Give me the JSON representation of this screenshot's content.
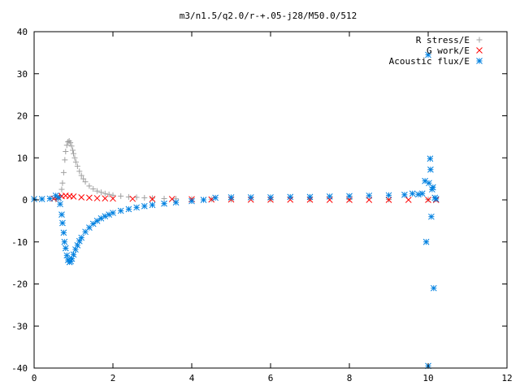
{
  "chart_data": {
    "type": "scatter",
    "title": "m3/n1.5/q2.0/r-+.05-j28/M50.0/512",
    "xlabel": "",
    "ylabel": "",
    "xlim": [
      0,
      12
    ],
    "ylim": [
      -40,
      40
    ],
    "x_ticks": [
      0,
      2,
      4,
      6,
      8,
      10,
      12
    ],
    "y_ticks": [
      -40,
      -30,
      -20,
      -10,
      0,
      10,
      20,
      30,
      40
    ],
    "x_tick_labels": [
      "0",
      "2",
      "4",
      "6",
      "8",
      "10",
      "12"
    ],
    "y_tick_labels": [
      "-40",
      "-30",
      "-20",
      "-10",
      "0",
      "10",
      "20",
      "30",
      "40"
    ],
    "grid": false,
    "legend_position": "top-right",
    "series": [
      {
        "name": "R stress/E",
        "marker": "plus",
        "color": "#a0a0a0",
        "points": [
          [
            0.55,
            0.1
          ],
          [
            0.6,
            0.3
          ],
          [
            0.65,
            1.0
          ],
          [
            0.7,
            2.5
          ],
          [
            0.72,
            4.0
          ],
          [
            0.75,
            6.5
          ],
          [
            0.78,
            9.5
          ],
          [
            0.8,
            11.5
          ],
          [
            0.83,
            13.0
          ],
          [
            0.86,
            13.8
          ],
          [
            0.89,
            14.0
          ],
          [
            0.92,
            13.6
          ],
          [
            0.95,
            12.8
          ],
          [
            0.98,
            11.8
          ],
          [
            1.0,
            11.0
          ],
          [
            1.03,
            10.0
          ],
          [
            1.06,
            9.0
          ],
          [
            1.1,
            8.0
          ],
          [
            1.15,
            6.8
          ],
          [
            1.2,
            5.8
          ],
          [
            1.25,
            5.0
          ],
          [
            1.3,
            4.3
          ],
          [
            1.4,
            3.3
          ],
          [
            1.5,
            2.6
          ],
          [
            1.6,
            2.1
          ],
          [
            1.7,
            1.8
          ],
          [
            1.8,
            1.5
          ],
          [
            1.9,
            1.3
          ],
          [
            2.0,
            1.1
          ],
          [
            2.2,
            0.9
          ],
          [
            2.4,
            0.7
          ],
          [
            2.6,
            0.6
          ],
          [
            2.8,
            0.5
          ],
          [
            3.0,
            0.4
          ],
          [
            3.3,
            0.3
          ],
          [
            3.6,
            0.25
          ],
          [
            4.0,
            0.2
          ],
          [
            4.5,
            0.15
          ],
          [
            5.0,
            0.1
          ],
          [
            6.0,
            0.1
          ],
          [
            7.0,
            0.1
          ],
          [
            8.0,
            0.1
          ],
          [
            9.0,
            0.1
          ],
          [
            10.0,
            0.1
          ]
        ]
      },
      {
        "name": "G work/E",
        "marker": "cross",
        "color": "#ff0000",
        "points": [
          [
            0.5,
            0.3
          ],
          [
            0.6,
            0.6
          ],
          [
            0.7,
            0.9
          ],
          [
            0.8,
            1.0
          ],
          [
            0.9,
            0.9
          ],
          [
            1.0,
            0.8
          ],
          [
            1.2,
            0.6
          ],
          [
            1.4,
            0.5
          ],
          [
            1.6,
            0.4
          ],
          [
            1.8,
            0.35
          ],
          [
            2.0,
            0.3
          ],
          [
            2.5,
            0.25
          ],
          [
            3.0,
            0.2
          ],
          [
            3.5,
            0.2
          ],
          [
            4.0,
            0.15
          ],
          [
            4.5,
            0.1
          ],
          [
            5.0,
            0.1
          ],
          [
            5.5,
            0.05
          ],
          [
            6.0,
            0.05
          ],
          [
            6.5,
            0.05
          ],
          [
            7.0,
            0.05
          ],
          [
            7.5,
            0.0
          ],
          [
            8.0,
            0.0
          ],
          [
            8.5,
            0.0
          ],
          [
            9.0,
            0.0
          ],
          [
            9.5,
            0.0
          ],
          [
            10.0,
            0.0
          ],
          [
            10.2,
            0.0
          ]
        ]
      },
      {
        "name": "Acoustic flux/E",
        "marker": "star",
        "color": "#0080e0",
        "points": [
          [
            0.0,
            0.2
          ],
          [
            0.2,
            0.2
          ],
          [
            0.4,
            0.3
          ],
          [
            0.55,
            1.0
          ],
          [
            0.62,
            0.5
          ],
          [
            0.66,
            -1.0
          ],
          [
            0.7,
            -3.5
          ],
          [
            0.72,
            -5.5
          ],
          [
            0.75,
            -7.8
          ],
          [
            0.77,
            -10.0
          ],
          [
            0.8,
            -11.5
          ],
          [
            0.83,
            -13.2
          ],
          [
            0.86,
            -14.3
          ],
          [
            0.9,
            -14.8
          ],
          [
            0.93,
            -14.6
          ],
          [
            0.96,
            -14.0
          ],
          [
            1.0,
            -13.0
          ],
          [
            1.05,
            -11.8
          ],
          [
            1.1,
            -10.8
          ],
          [
            1.15,
            -9.8
          ],
          [
            1.2,
            -9.0
          ],
          [
            1.3,
            -7.6
          ],
          [
            1.4,
            -6.6
          ],
          [
            1.5,
            -5.7
          ],
          [
            1.6,
            -5.0
          ],
          [
            1.7,
            -4.4
          ],
          [
            1.8,
            -3.9
          ],
          [
            1.9,
            -3.5
          ],
          [
            2.0,
            -3.1
          ],
          [
            2.2,
            -2.6
          ],
          [
            2.4,
            -2.2
          ],
          [
            2.6,
            -1.8
          ],
          [
            2.8,
            -1.5
          ],
          [
            3.0,
            -1.2
          ],
          [
            3.3,
            -0.9
          ],
          [
            3.6,
            -0.6
          ],
          [
            4.0,
            -0.3
          ],
          [
            4.3,
            0.0
          ],
          [
            4.6,
            0.5
          ],
          [
            5.0,
            0.6
          ],
          [
            5.5,
            0.6
          ],
          [
            6.0,
            0.6
          ],
          [
            6.5,
            0.7
          ],
          [
            7.0,
            0.7
          ],
          [
            7.5,
            0.8
          ],
          [
            8.0,
            0.9
          ],
          [
            8.5,
            1.0
          ],
          [
            9.0,
            1.1
          ],
          [
            9.4,
            1.2
          ],
          [
            9.6,
            1.5
          ],
          [
            9.75,
            1.3
          ],
          [
            9.85,
            1.5
          ],
          [
            9.92,
            4.5
          ],
          [
            9.95,
            -10.0
          ],
          [
            10.0,
            34.5
          ],
          [
            10.02,
            4.0
          ],
          [
            10.05,
            9.8
          ],
          [
            10.06,
            7.2
          ],
          [
            10.08,
            -4.0
          ],
          [
            10.1,
            2.5
          ],
          [
            10.12,
            3.0
          ],
          [
            10.14,
            -21.0
          ],
          [
            10.17,
            0.5
          ],
          [
            10.2,
            0.2
          ],
          [
            10.0,
            -39.5
          ]
        ]
      }
    ]
  }
}
